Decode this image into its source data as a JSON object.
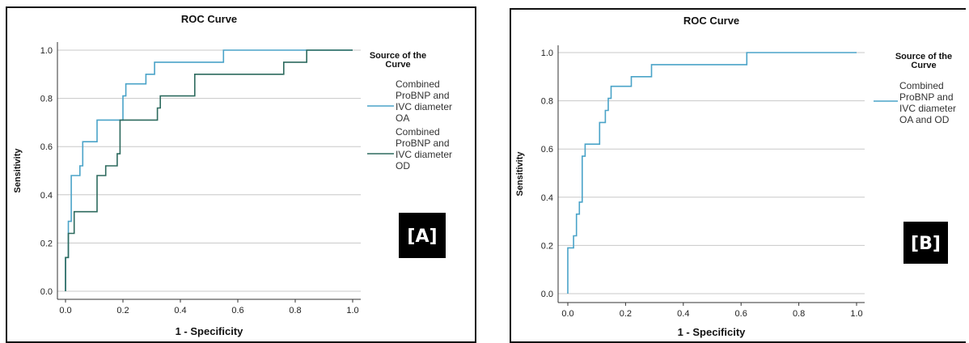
{
  "chart_data": [
    {
      "type": "line",
      "title": "ROC Curve",
      "xlabel": "1 - Specificity",
      "ylabel": "Sensitivity",
      "xlim": [
        0,
        1
      ],
      "ylim": [
        0,
        1
      ],
      "x_ticks": [
        "0.0",
        "0.2",
        "0.4",
        "0.6",
        "0.8",
        "1.0"
      ],
      "y_ticks": [
        "0.0",
        "0.2",
        "0.4",
        "0.6",
        "0.8",
        "1.0"
      ],
      "grid": "horizontal",
      "legend_title": "Source of the Curve",
      "legend_placement": "right",
      "panel_label": "[A]",
      "series": [
        {
          "name_lines": [
            "Combined",
            "ProBNP and",
            "IVC diameter",
            "OA"
          ],
          "color": "#4aa3c8",
          "points": [
            [
              0,
              0
            ],
            [
              0,
              0.14
            ],
            [
              0.01,
              0.14
            ],
            [
              0.01,
              0.29
            ],
            [
              0.02,
              0.29
            ],
            [
              0.02,
              0.48
            ],
            [
              0.05,
              0.48
            ],
            [
              0.05,
              0.52
            ],
            [
              0.06,
              0.52
            ],
            [
              0.06,
              0.62
            ],
            [
              0.11,
              0.62
            ],
            [
              0.11,
              0.71
            ],
            [
              0.2,
              0.71
            ],
            [
              0.2,
              0.81
            ],
            [
              0.21,
              0.81
            ],
            [
              0.21,
              0.86
            ],
            [
              0.28,
              0.86
            ],
            [
              0.28,
              0.9
            ],
            [
              0.31,
              0.9
            ],
            [
              0.31,
              0.95
            ],
            [
              0.55,
              0.95
            ],
            [
              0.55,
              1
            ],
            [
              1,
              1
            ]
          ]
        },
        {
          "name_lines": [
            "Combined",
            "ProBNP and",
            "IVC diameter",
            "OD"
          ],
          "color": "#2d6a5e",
          "points": [
            [
              0,
              0
            ],
            [
              0,
              0.14
            ],
            [
              0.01,
              0.14
            ],
            [
              0.01,
              0.24
            ],
            [
              0.03,
              0.24
            ],
            [
              0.03,
              0.33
            ],
            [
              0.11,
              0.33
            ],
            [
              0.11,
              0.48
            ],
            [
              0.14,
              0.48
            ],
            [
              0.14,
              0.52
            ],
            [
              0.18,
              0.52
            ],
            [
              0.18,
              0.57
            ],
            [
              0.19,
              0.57
            ],
            [
              0.19,
              0.71
            ],
            [
              0.32,
              0.71
            ],
            [
              0.32,
              0.76
            ],
            [
              0.33,
              0.76
            ],
            [
              0.33,
              0.81
            ],
            [
              0.45,
              0.81
            ],
            [
              0.45,
              0.9
            ],
            [
              0.76,
              0.9
            ],
            [
              0.76,
              0.95
            ],
            [
              0.84,
              0.95
            ],
            [
              0.84,
              1
            ],
            [
              1,
              1
            ]
          ]
        }
      ]
    },
    {
      "type": "line",
      "title": "ROC Curve",
      "xlabel": "1 - Specificity",
      "ylabel": "Sensitivity",
      "xlim": [
        0,
        1
      ],
      "ylim": [
        0,
        1
      ],
      "x_ticks": [
        "0.0",
        "0.2",
        "0.4",
        "0.6",
        "0.8",
        "1.0"
      ],
      "y_ticks": [
        "0.0",
        "0.2",
        "0.4",
        "0.6",
        "0.8",
        "1.0"
      ],
      "grid": "horizontal",
      "legend_title": "Source of the Curve",
      "legend_placement": "right",
      "panel_label": "[B]",
      "series": [
        {
          "name_lines": [
            "Combined",
            "ProBNP and",
            "IVC diameter",
            "OA and OD"
          ],
          "color": "#4aa3c8",
          "points": [
            [
              0,
              0
            ],
            [
              0,
              0.19
            ],
            [
              0.02,
              0.19
            ],
            [
              0.02,
              0.24
            ],
            [
              0.03,
              0.24
            ],
            [
              0.03,
              0.33
            ],
            [
              0.04,
              0.33
            ],
            [
              0.04,
              0.38
            ],
            [
              0.05,
              0.38
            ],
            [
              0.05,
              0.57
            ],
            [
              0.06,
              0.57
            ],
            [
              0.06,
              0.62
            ],
            [
              0.11,
              0.62
            ],
            [
              0.11,
              0.71
            ],
            [
              0.13,
              0.71
            ],
            [
              0.13,
              0.76
            ],
            [
              0.14,
              0.76
            ],
            [
              0.14,
              0.81
            ],
            [
              0.15,
              0.81
            ],
            [
              0.15,
              0.86
            ],
            [
              0.22,
              0.86
            ],
            [
              0.22,
              0.9
            ],
            [
              0.29,
              0.9
            ],
            [
              0.29,
              0.95
            ],
            [
              0.62,
              0.95
            ],
            [
              0.62,
              1
            ],
            [
              1,
              1
            ]
          ]
        }
      ]
    }
  ]
}
